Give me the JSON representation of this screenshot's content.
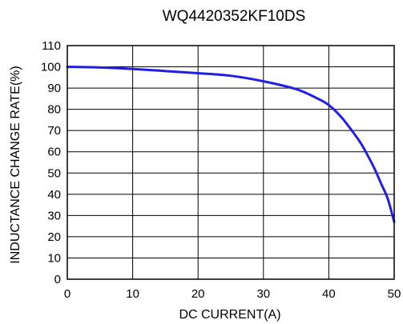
{
  "chart_data": {
    "type": "line",
    "title": "WQ4420352KF10DS",
    "xlabel": "DC CURRENT(A)",
    "ylabel": "INDUCTANCE CHANGE RATE(%)",
    "xlim": [
      0,
      50
    ],
    "ylim": [
      0,
      110
    ],
    "xticks": [
      "0",
      "10",
      "20",
      "30",
      "40",
      "50"
    ],
    "yticks": [
      "0",
      "10",
      "20",
      "30",
      "40",
      "50",
      "60",
      "70",
      "80",
      "90",
      "100",
      "110"
    ],
    "grid": true,
    "series": [
      {
        "color": "#1f1fe6",
        "x": [
          0,
          5,
          10,
          15,
          20,
          25,
          30,
          35,
          38,
          40,
          42,
          44,
          45,
          46,
          47,
          48,
          49,
          50
        ],
        "y": [
          100,
          99.7,
          99,
          98,
          97,
          95.8,
          93.2,
          89.5,
          85.5,
          82,
          76,
          68,
          63.5,
          58,
          52,
          45,
          38,
          27
        ]
      }
    ]
  }
}
